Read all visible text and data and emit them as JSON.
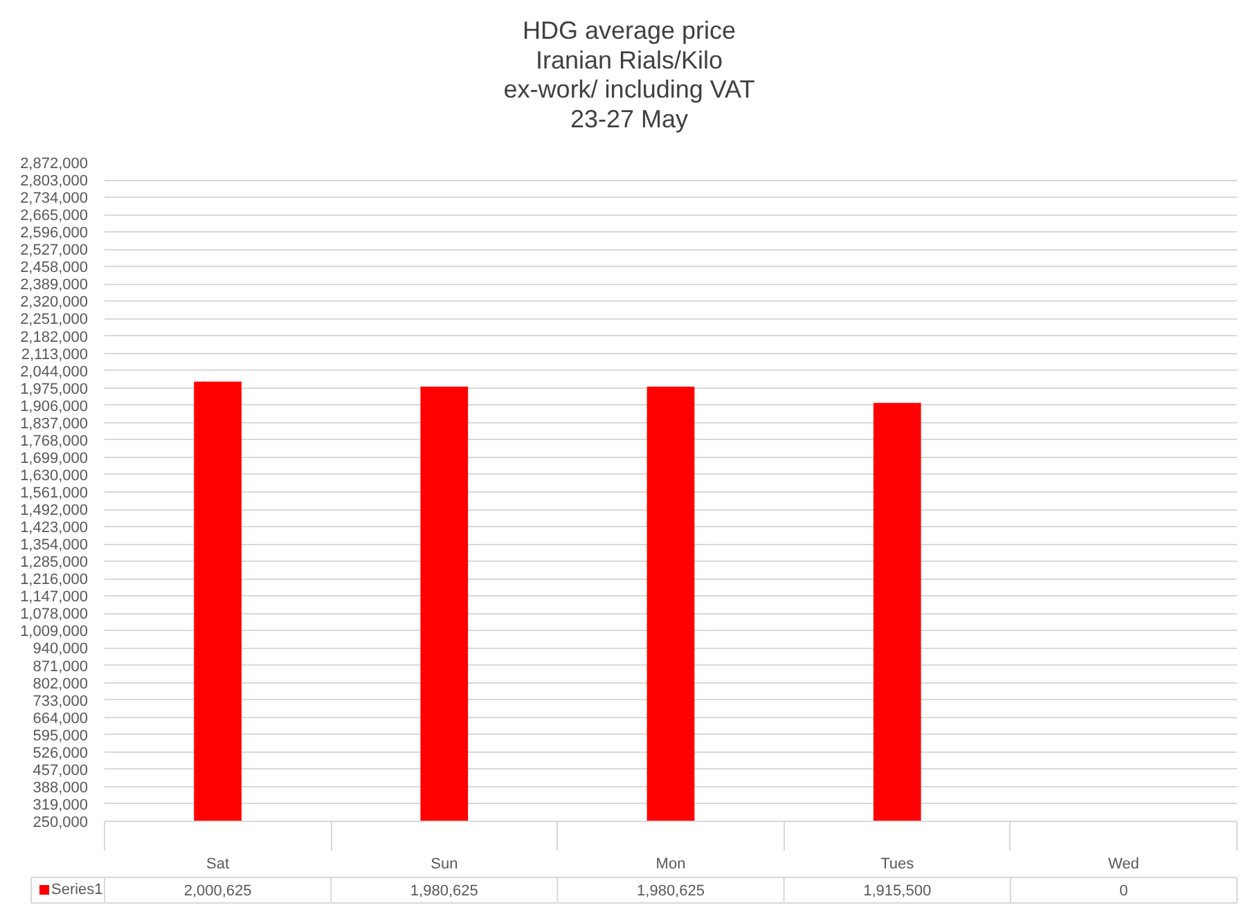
{
  "chart_data": {
    "type": "bar",
    "title": "HDG average price\nIranian Rials/Kilo\nex-work/ including VAT\n23-27 May",
    "categories": [
      "Sat",
      "Sun",
      "Mon",
      "Tues",
      "Wed"
    ],
    "series": [
      {
        "name": "Series1",
        "color": "#ff0000",
        "values": [
          2000625,
          1980625,
          1980625,
          1915500,
          null
        ],
        "value_labels": [
          "2,000,625",
          "1,980,625",
          "1,980,625",
          "1,915,500",
          "0"
        ]
      }
    ],
    "ylim": [
      250000,
      2872000
    ],
    "yticks": [
      {
        "value": 250000,
        "label": "250,000"
      },
      {
        "value": 319000,
        "label": "319,000"
      },
      {
        "value": 388000,
        "label": "388,000"
      },
      {
        "value": 457000,
        "label": "457,000"
      },
      {
        "value": 526000,
        "label": "526,000"
      },
      {
        "value": 595000,
        "label": "595,000"
      },
      {
        "value": 664000,
        "label": "664,000"
      },
      {
        "value": 733000,
        "label": "733,000"
      },
      {
        "value": 802000,
        "label": "802,000"
      },
      {
        "value": 871000,
        "label": "871,000"
      },
      {
        "value": 940000,
        "label": "940,000"
      },
      {
        "value": 1009000,
        "label": "1,009,000"
      },
      {
        "value": 1078000,
        "label": "1,078,000"
      },
      {
        "value": 1147000,
        "label": "1,147,000"
      },
      {
        "value": 1216000,
        "label": "1,216,000"
      },
      {
        "value": 1285000,
        "label": "1,285,000"
      },
      {
        "value": 1354000,
        "label": "1,354,000"
      },
      {
        "value": 1423000,
        "label": "1,423,000"
      },
      {
        "value": 1492000,
        "label": "1,492,000"
      },
      {
        "value": 1561000,
        "label": "1,561,000"
      },
      {
        "value": 1630000,
        "label": "1,630,000"
      },
      {
        "value": 1699000,
        "label": "1,699,000"
      },
      {
        "value": 1768000,
        "label": "1,768,000"
      },
      {
        "value": 1837000,
        "label": "1,837,000"
      },
      {
        "value": 1906000,
        "label": "1,906,000"
      },
      {
        "value": 1975000,
        "label": "1,975,000"
      },
      {
        "value": 2044000,
        "label": "2,044,000"
      },
      {
        "value": 2113000,
        "label": "2,113,000"
      },
      {
        "value": 2182000,
        "label": "2,182,000"
      },
      {
        "value": 2251000,
        "label": "2,251,000"
      },
      {
        "value": 2320000,
        "label": "2,320,000"
      },
      {
        "value": 2389000,
        "label": "2,389,000"
      },
      {
        "value": 2458000,
        "label": "2,458,000"
      },
      {
        "value": 2527000,
        "label": "2,527,000"
      },
      {
        "value": 2596000,
        "label": "2,596,000"
      },
      {
        "value": 2665000,
        "label": "2,665,000"
      },
      {
        "value": 2734000,
        "label": "2,734,000"
      },
      {
        "value": 2803000,
        "label": "2,803,000"
      },
      {
        "value": 2872000,
        "label": "2,872,000"
      }
    ],
    "grid": "y",
    "legend": "bottom left"
  }
}
